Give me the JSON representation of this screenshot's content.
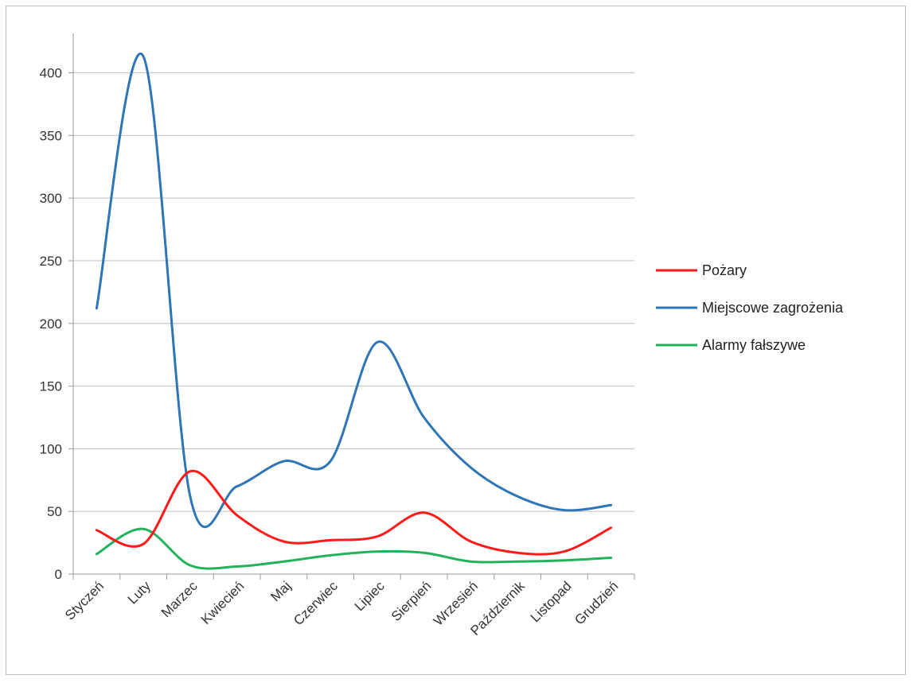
{
  "chart_data": {
    "type": "line",
    "smooth": true,
    "categories": [
      "Styczeń",
      "Luty",
      "Marzec",
      "Kwiecień",
      "Maj",
      "Czerwiec",
      "Lipiec",
      "Sierpień",
      "Wrzesień",
      "Październik",
      "Listopad",
      "Grudzień"
    ],
    "ylim": [
      0,
      420
    ],
    "yticks": [
      0,
      50,
      100,
      150,
      200,
      250,
      300,
      350,
      400
    ],
    "grid": true,
    "legend_position": "right",
    "series": [
      {
        "name": "Pożary",
        "color": "#ff1a1a",
        "values": [
          35,
          24,
          82,
          47,
          26,
          27,
          30,
          49,
          26,
          17,
          18,
          37
        ]
      },
      {
        "name": "Miejscowe zagrożenia",
        "color": "#2e75b6",
        "values": [
          212,
          413,
          62,
          70,
          90,
          90,
          185,
          125,
          85,
          62,
          51,
          55
        ]
      },
      {
        "name": "Alarmy fałszywe",
        "color": "#22b35a",
        "values": [
          16,
          36,
          7,
          6,
          10,
          15,
          18,
          17,
          10,
          10,
          11,
          13
        ]
      }
    ]
  }
}
